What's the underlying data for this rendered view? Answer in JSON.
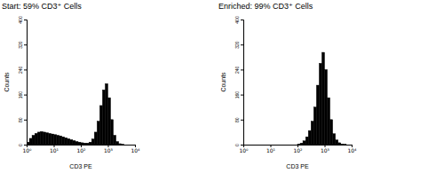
{
  "chart_data": [
    {
      "type": "histogram",
      "title": "Start: 59% CD3⁺ Cells",
      "x_label": "CD3 PE",
      "y_label": "Counts",
      "log": "x",
      "color": "#000000",
      "bins": [
        1,
        1.26,
        1.58,
        2,
        2.51,
        3.16,
        3.98,
        5.01,
        6.31,
        7.94,
        10,
        12.6,
        15.8,
        20,
        25.1,
        31.6,
        39.8,
        50.1,
        63.1,
        79.4,
        100,
        126,
        158,
        200,
        251,
        316,
        398,
        501,
        631,
        794,
        1000,
        1259,
        1585,
        1995,
        2512,
        3162,
        3981,
        5012,
        6310,
        7943,
        10000
      ],
      "counts": [
        8,
        20,
        30,
        36,
        40,
        42,
        40,
        38,
        36,
        34,
        32,
        30,
        28,
        25,
        22,
        19,
        16,
        13,
        10,
        8,
        6,
        5,
        5,
        8,
        18,
        40,
        75,
        125,
        175,
        195,
        150,
        80,
        30,
        10,
        3,
        1,
        0,
        0,
        0,
        0
      ],
      "xlim": [
        1,
        10000
      ],
      "xticks": [
        {
          "value": 1,
          "label": "10⁰"
        },
        {
          "value": 10,
          "label": "10¹"
        },
        {
          "value": 100,
          "label": "10²"
        },
        {
          "value": 1000,
          "label": "10³"
        },
        {
          "value": 10000,
          "label": "10⁴"
        }
      ],
      "ylim": [
        0,
        400
      ],
      "yticks": [
        0,
        80,
        160,
        240,
        320,
        400
      ]
    },
    {
      "type": "histogram",
      "title": "Enriched: 99% CD3⁺ Cells",
      "x_label": "CD3 PE",
      "y_label": "Counts",
      "log": "x",
      "color": "#000000",
      "bins": [
        1,
        1.26,
        1.58,
        2,
        2.51,
        3.16,
        3.98,
        5.01,
        6.31,
        7.94,
        10,
        12.6,
        15.8,
        20,
        25.1,
        31.6,
        39.8,
        50.1,
        63.1,
        79.4,
        100,
        126,
        158,
        200,
        251,
        316,
        398,
        501,
        631,
        794,
        1000,
        1259,
        1585,
        1995,
        2512,
        3162,
        3981,
        5012,
        6310,
        7943,
        10000
      ],
      "counts": [
        0,
        0,
        0,
        0,
        0,
        0,
        0,
        0,
        0,
        0,
        0,
        0,
        0,
        0,
        0,
        0,
        0,
        0,
        0,
        0,
        2,
        5,
        12,
        25,
        45,
        75,
        120,
        190,
        260,
        295,
        240,
        150,
        80,
        35,
        15,
        6,
        2,
        1,
        0,
        0
      ],
      "xlim": [
        1,
        10000
      ],
      "xticks": [
        {
          "value": 1,
          "label": "10⁰"
        },
        {
          "value": 10,
          "label": "10¹"
        },
        {
          "value": 100,
          "label": "10²"
        },
        {
          "value": 1000,
          "label": "10³"
        },
        {
          "value": 10000,
          "label": "10⁴"
        }
      ],
      "ylim": [
        0,
        400
      ],
      "yticks": [
        0,
        80,
        160,
        240,
        320,
        400
      ]
    }
  ]
}
